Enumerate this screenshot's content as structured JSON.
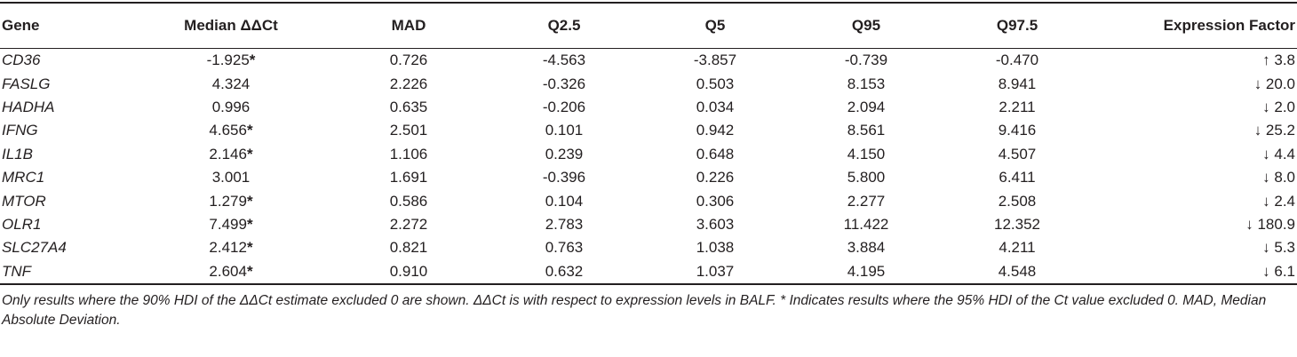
{
  "table": {
    "headers": [
      "Gene",
      "Median ΔΔCt",
      "MAD",
      "Q2.5",
      "Q5",
      "Q95",
      "Q97.5",
      "Expression Factor"
    ],
    "rows": [
      {
        "gene": "CD36",
        "median": "-1.925",
        "star": "*",
        "mad": "0.726",
        "q2_5": "-4.563",
        "q5": "-3.857",
        "q95": "-0.739",
        "q97_5": "-0.470",
        "factor": "↑ 3.8"
      },
      {
        "gene": "FASLG",
        "median": "4.324",
        "star": "",
        "mad": "2.226",
        "q2_5": "-0.326",
        "q5": "0.503",
        "q95": "8.153",
        "q97_5": "8.941",
        "factor": "↓ 20.0"
      },
      {
        "gene": "HADHA",
        "median": "0.996",
        "star": "",
        "mad": "0.635",
        "q2_5": "-0.206",
        "q5": "0.034",
        "q95": "2.094",
        "q97_5": "2.211",
        "factor": "↓ 2.0"
      },
      {
        "gene": "IFNG",
        "median": "4.656",
        "star": "*",
        "mad": "2.501",
        "q2_5": "0.101",
        "q5": "0.942",
        "q95": "8.561",
        "q97_5": "9.416",
        "factor": "↓ 25.2"
      },
      {
        "gene": "IL1B",
        "median": "2.146",
        "star": "*",
        "mad": "1.106",
        "q2_5": "0.239",
        "q5": "0.648",
        "q95": "4.150",
        "q97_5": "4.507",
        "factor": "↓ 4.4"
      },
      {
        "gene": "MRC1",
        "median": "3.001",
        "star": "",
        "mad": "1.691",
        "q2_5": "-0.396",
        "q5": "0.226",
        "q95": "5.800",
        "q97_5": "6.411",
        "factor": "↓ 8.0"
      },
      {
        "gene": "MTOR",
        "median": "1.279",
        "star": "*",
        "mad": "0.586",
        "q2_5": "0.104",
        "q5": "0.306",
        "q95": "2.277",
        "q97_5": "2.508",
        "factor": "↓ 2.4"
      },
      {
        "gene": "OLR1",
        "median": "7.499",
        "star": "*",
        "mad": "2.272",
        "q2_5": "2.783",
        "q5": "3.603",
        "q95": "11.422",
        "q97_5": "12.352",
        "factor": "↓ 180.9"
      },
      {
        "gene": "SLC27A4",
        "median": "2.412",
        "star": "*",
        "mad": "0.821",
        "q2_5": "0.763",
        "q5": "1.038",
        "q95": "3.884",
        "q97_5": "4.211",
        "factor": "↓ 5.3"
      },
      {
        "gene": "TNF",
        "median": "2.604",
        "star": "*",
        "mad": "0.910",
        "q2_5": "0.632",
        "q5": "1.037",
        "q95": "4.195",
        "q97_5": "4.548",
        "factor": "↓ 6.1"
      }
    ]
  },
  "footnote": "Only results where the 90% HDI of the ΔΔCt estimate excluded 0 are shown. ΔΔCt is with respect to expression levels in BALF. * Indicates results where the 95% HDI of the Ct value excluded 0. MAD, Median Absolute Deviation."
}
